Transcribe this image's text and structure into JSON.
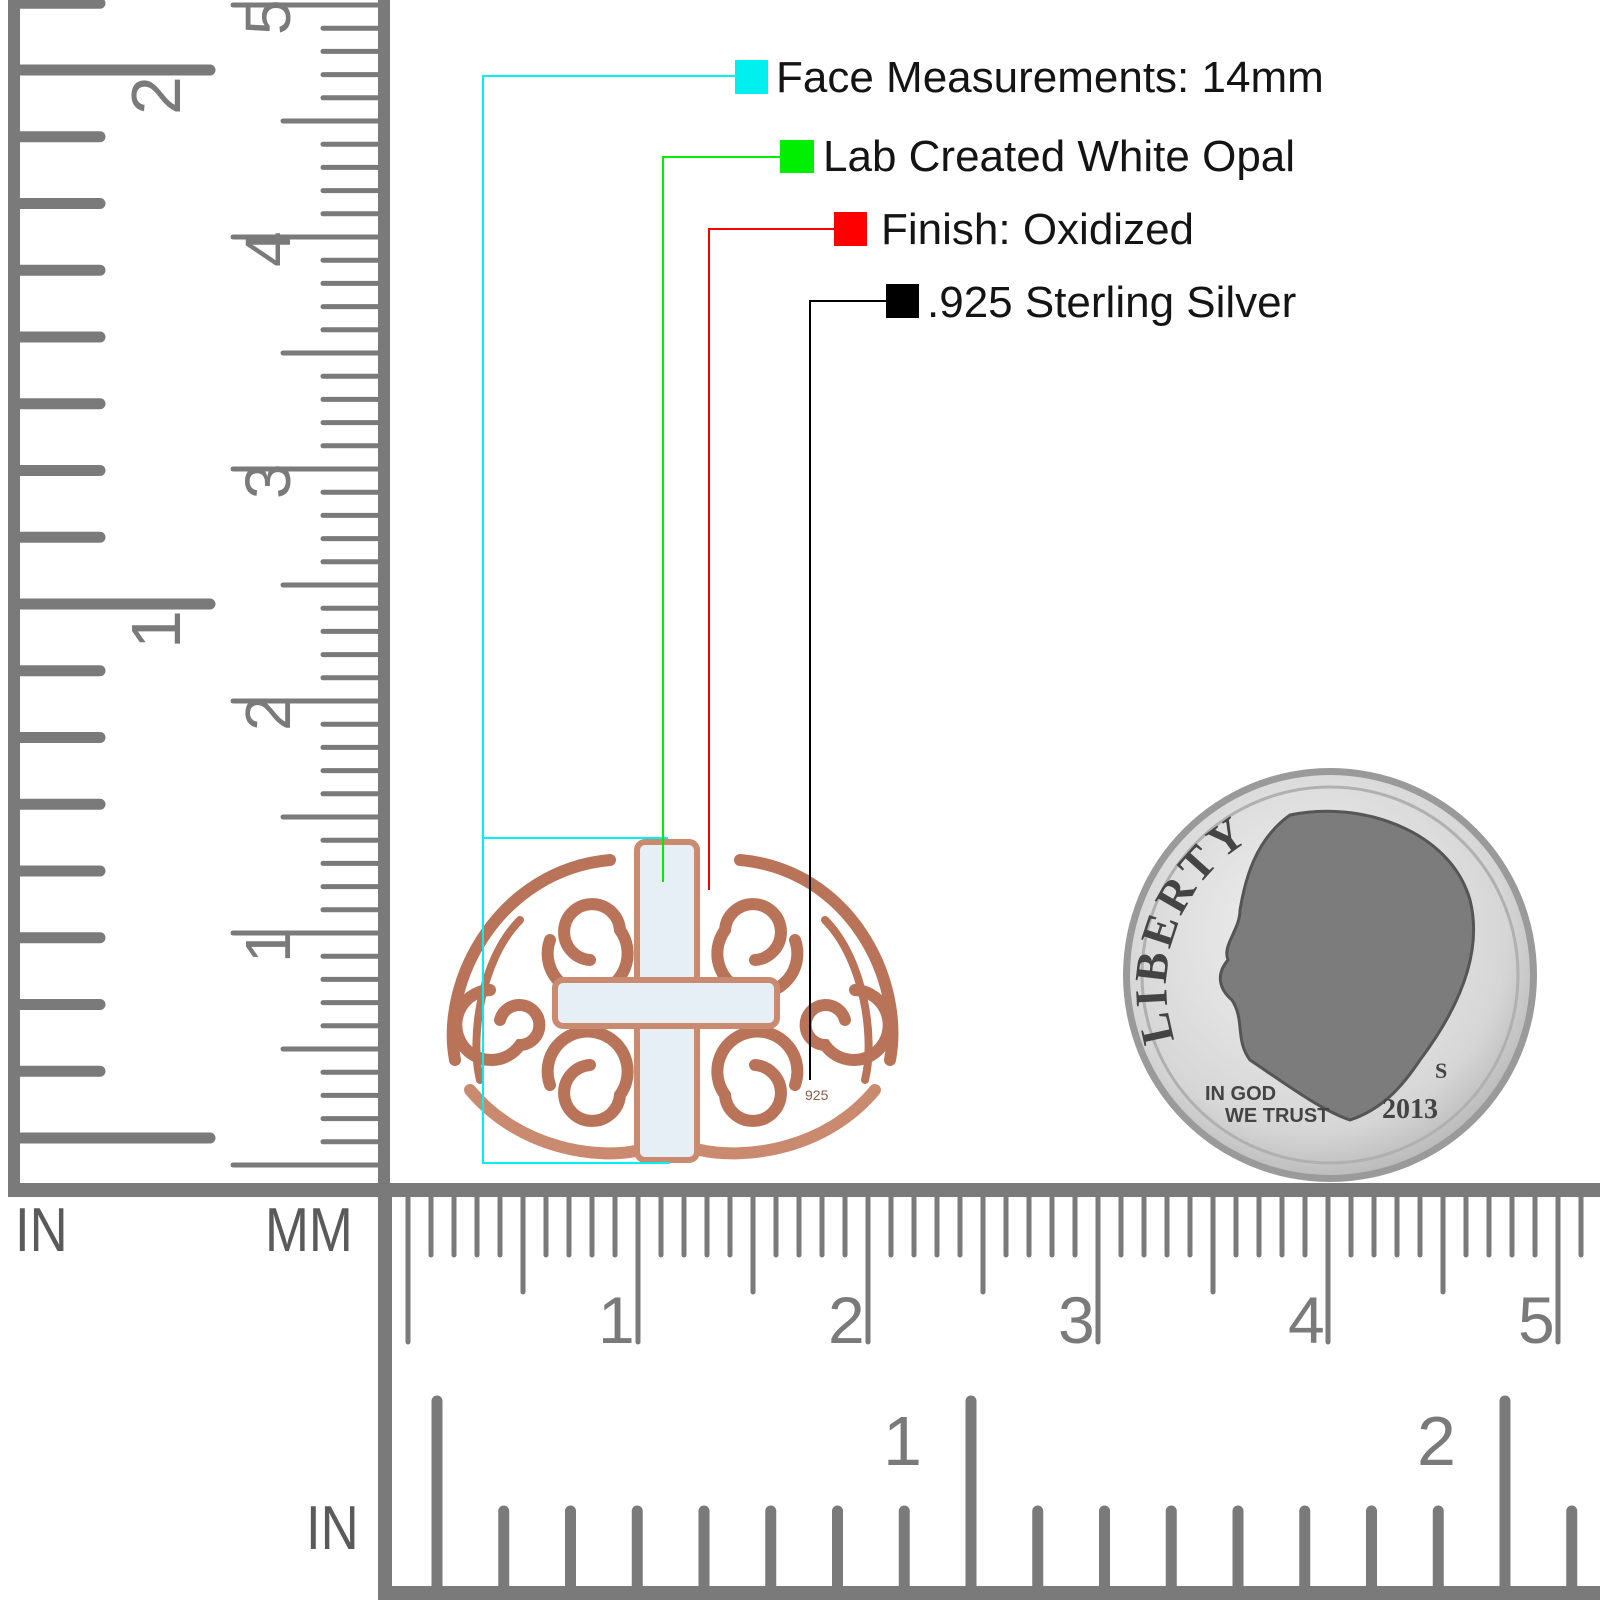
{
  "legend": {
    "items": [
      {
        "label": "Face Measurements: 14mm",
        "color": "#00f0f0"
      },
      {
        "label": "Lab Created White Opal",
        "color": "#00ee00"
      },
      {
        "label": "Finish: Oxidized",
        "color": "#ff0000"
      },
      {
        "label": ".925 Sterling Silver",
        "color": "#000000"
      }
    ]
  },
  "rulers": {
    "left_in_unit": "IN",
    "left_mm_unit": "MM",
    "bottom_in_unit": "IN",
    "vertical_inch_labels": [
      "1",
      "2"
    ],
    "vertical_cm_labels": [
      "1",
      "2",
      "3",
      "4",
      "5"
    ],
    "horizontal_cm_labels": [
      "1",
      "2",
      "3",
      "4",
      "5"
    ],
    "horizontal_inch_labels": [
      "1",
      "2"
    ],
    "color": "#7a7a7a"
  },
  "product": {
    "ring_color": "#b87358",
    "opal_color": "#e6eef6",
    "stamp": "925"
  },
  "coin": {
    "legend": "LIBERTY",
    "motto_1": "IN GOD",
    "motto_2": "WE TRUST",
    "year": "2013",
    "mint_mark": "S"
  }
}
